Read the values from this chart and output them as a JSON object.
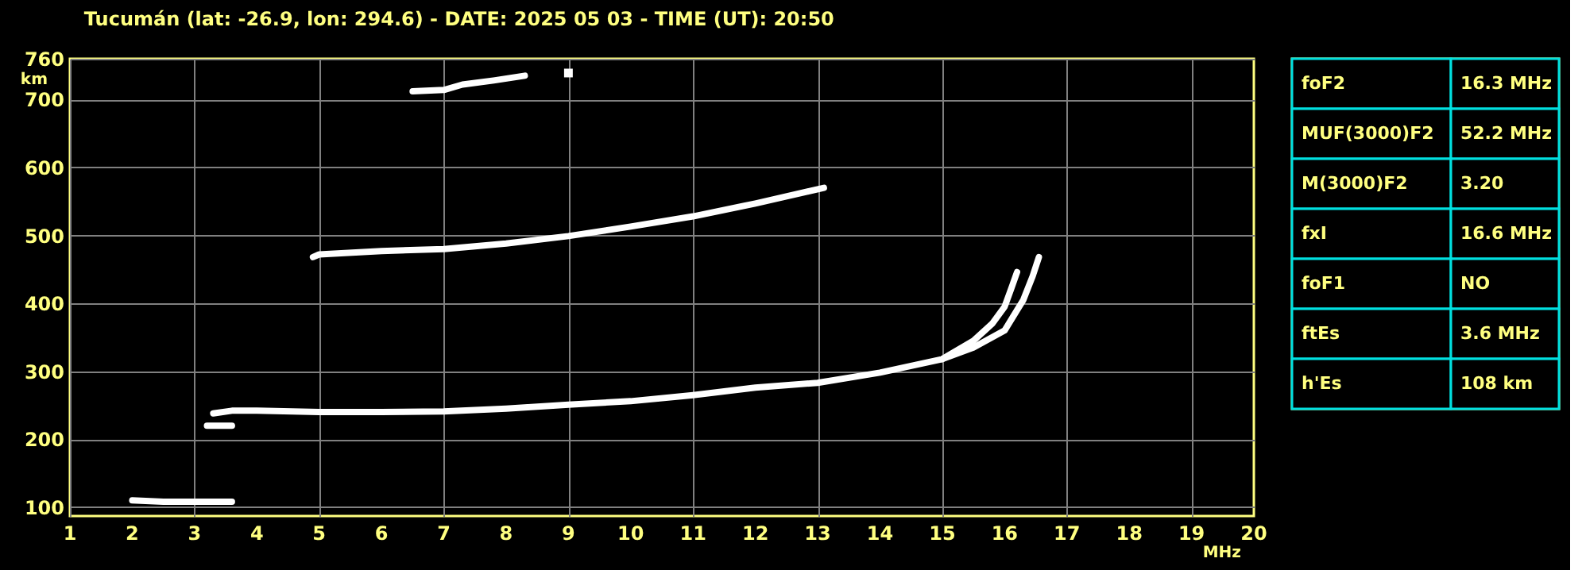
{
  "chart_data": [
    {
      "type": "line",
      "title": "Tucumán (lat: -26.9, lon: 294.6) - DATE: 2025 05 03 - TIME (UT): 20:50",
      "xlabel": "MHz",
      "ylabel": "km",
      "xlim": [
        1,
        20
      ],
      "ylim": [
        87,
        760
      ],
      "xticks": [
        1,
        2,
        3,
        4,
        5,
        6,
        7,
        8,
        9,
        10,
        11,
        12,
        13,
        14,
        15,
        16,
        17,
        18,
        19,
        20
      ],
      "yticks": [
        100,
        200,
        300,
        400,
        500,
        600,
        700,
        760
      ],
      "grid": true,
      "line_style": "solid",
      "series": [
        {
          "color": "#ffffff",
          "x": [
            2.0,
            2.5,
            3.0,
            3.6
          ],
          "values": [
            110,
            108,
            108,
            108
          ]
        },
        {
          "color": "#ffffff",
          "x": [
            3.2,
            3.6
          ],
          "values": [
            220,
            220
          ]
        },
        {
          "color": "#ffffff",
          "x": [
            3.3,
            3.6,
            4,
            5,
            6,
            7,
            8,
            9,
            10,
            11,
            12,
            13,
            14,
            15,
            15.5,
            15.8,
            16.0,
            16.1,
            16.2
          ],
          "values": [
            238,
            242,
            242,
            240,
            240,
            241,
            245,
            251,
            256,
            265,
            276,
            283,
            298,
            318,
            345,
            370,
            395,
            420,
            446
          ]
        },
        {
          "color": "#ffffff",
          "x": [
            15.0,
            15.5,
            16.0,
            16.3,
            16.45,
            16.55
          ],
          "values": [
            318,
            335,
            360,
            405,
            440,
            468
          ]
        },
        {
          "color": "#ffffff",
          "x": [
            4.9,
            5,
            6,
            7,
            8,
            9,
            10,
            11,
            12,
            13.1
          ],
          "values": [
            468,
            472,
            477,
            480,
            488,
            499,
            513,
            528,
            547,
            570
          ]
        },
        {
          "color": "#ffffff",
          "x": [
            6.5,
            7.0,
            7.3,
            7.8,
            8.3
          ],
          "values": [
            712,
            714,
            722,
            728,
            735
          ]
        },
        {
          "type": "scatter",
          "color": "#ffffff",
          "x": [
            9.0
          ],
          "values": [
            739
          ]
        }
      ]
    },
    {
      "type": "other",
      "annotations": [
        "foF2",
        "16.3 MHz",
        "MUF(3000)F2",
        "52.2 MHz",
        "M(3000)F2",
        "3.20",
        "fxI",
        "16.6 MHz",
        "foF1",
        "NO",
        "ftEs",
        "3.6 MHz",
        "h'Es",
        "108 km"
      ]
    }
  ]
}
